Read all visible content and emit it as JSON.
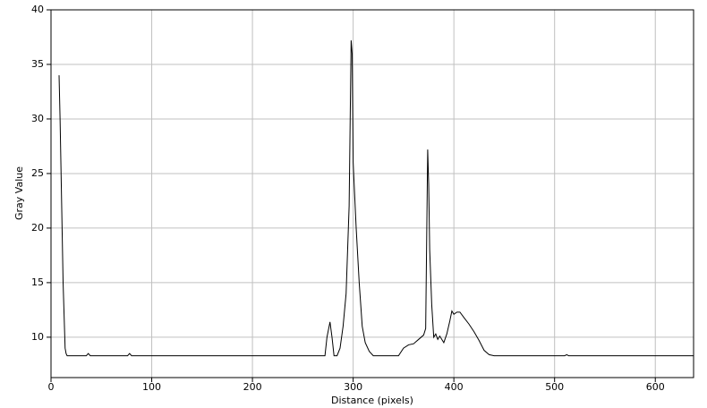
{
  "chart_data": {
    "type": "line",
    "xlabel": "Distance (pixels)",
    "ylabel": "Gray Value",
    "xlim": [
      0,
      638
    ],
    "ylim": [
      6.3,
      40
    ],
    "xticks": [
      0,
      100,
      200,
      300,
      400,
      500,
      600
    ],
    "yticks": [
      10,
      15,
      20,
      25,
      30,
      35,
      40
    ],
    "grid": true,
    "series": [
      {
        "color": "#000000",
        "x": [
          8,
          9,
          10,
          11,
          12,
          13,
          14,
          15,
          16,
          35,
          37,
          39,
          76,
          78,
          80,
          272,
          274,
          277,
          279,
          281,
          284,
          287,
          290,
          293,
          296,
          298,
          299,
          300,
          303,
          306,
          309,
          312,
          316,
          320,
          345,
          350,
          355,
          360,
          365,
          370,
          372,
          374,
          375,
          376,
          378,
          380,
          382,
          384,
          386,
          390,
          393,
          396,
          398,
          400,
          403,
          406,
          410,
          415,
          420,
          425,
          430,
          435,
          440,
          510,
          512,
          514,
          638
        ],
        "values": [
          34,
          30,
          25,
          20,
          15,
          12,
          9,
          8.5,
          8.3,
          8.3,
          8.5,
          8.3,
          8.3,
          8.5,
          8.3,
          8.3,
          10,
          11.4,
          10,
          8.3,
          8.3,
          9,
          11,
          14,
          22,
          37.2,
          36,
          26,
          20,
          15,
          11,
          9.5,
          8.7,
          8.3,
          8.3,
          9,
          9.3,
          9.4,
          9.8,
          10.2,
          10.8,
          27.2,
          24,
          18,
          13,
          10,
          10.3,
          9.8,
          10.1,
          9.5,
          10.3,
          11.5,
          12.4,
          12.1,
          12.3,
          12.3,
          11.8,
          11.2,
          10.5,
          9.7,
          8.8,
          8.4,
          8.3,
          8.3,
          8.4,
          8.3,
          8.3
        ]
      }
    ]
  }
}
